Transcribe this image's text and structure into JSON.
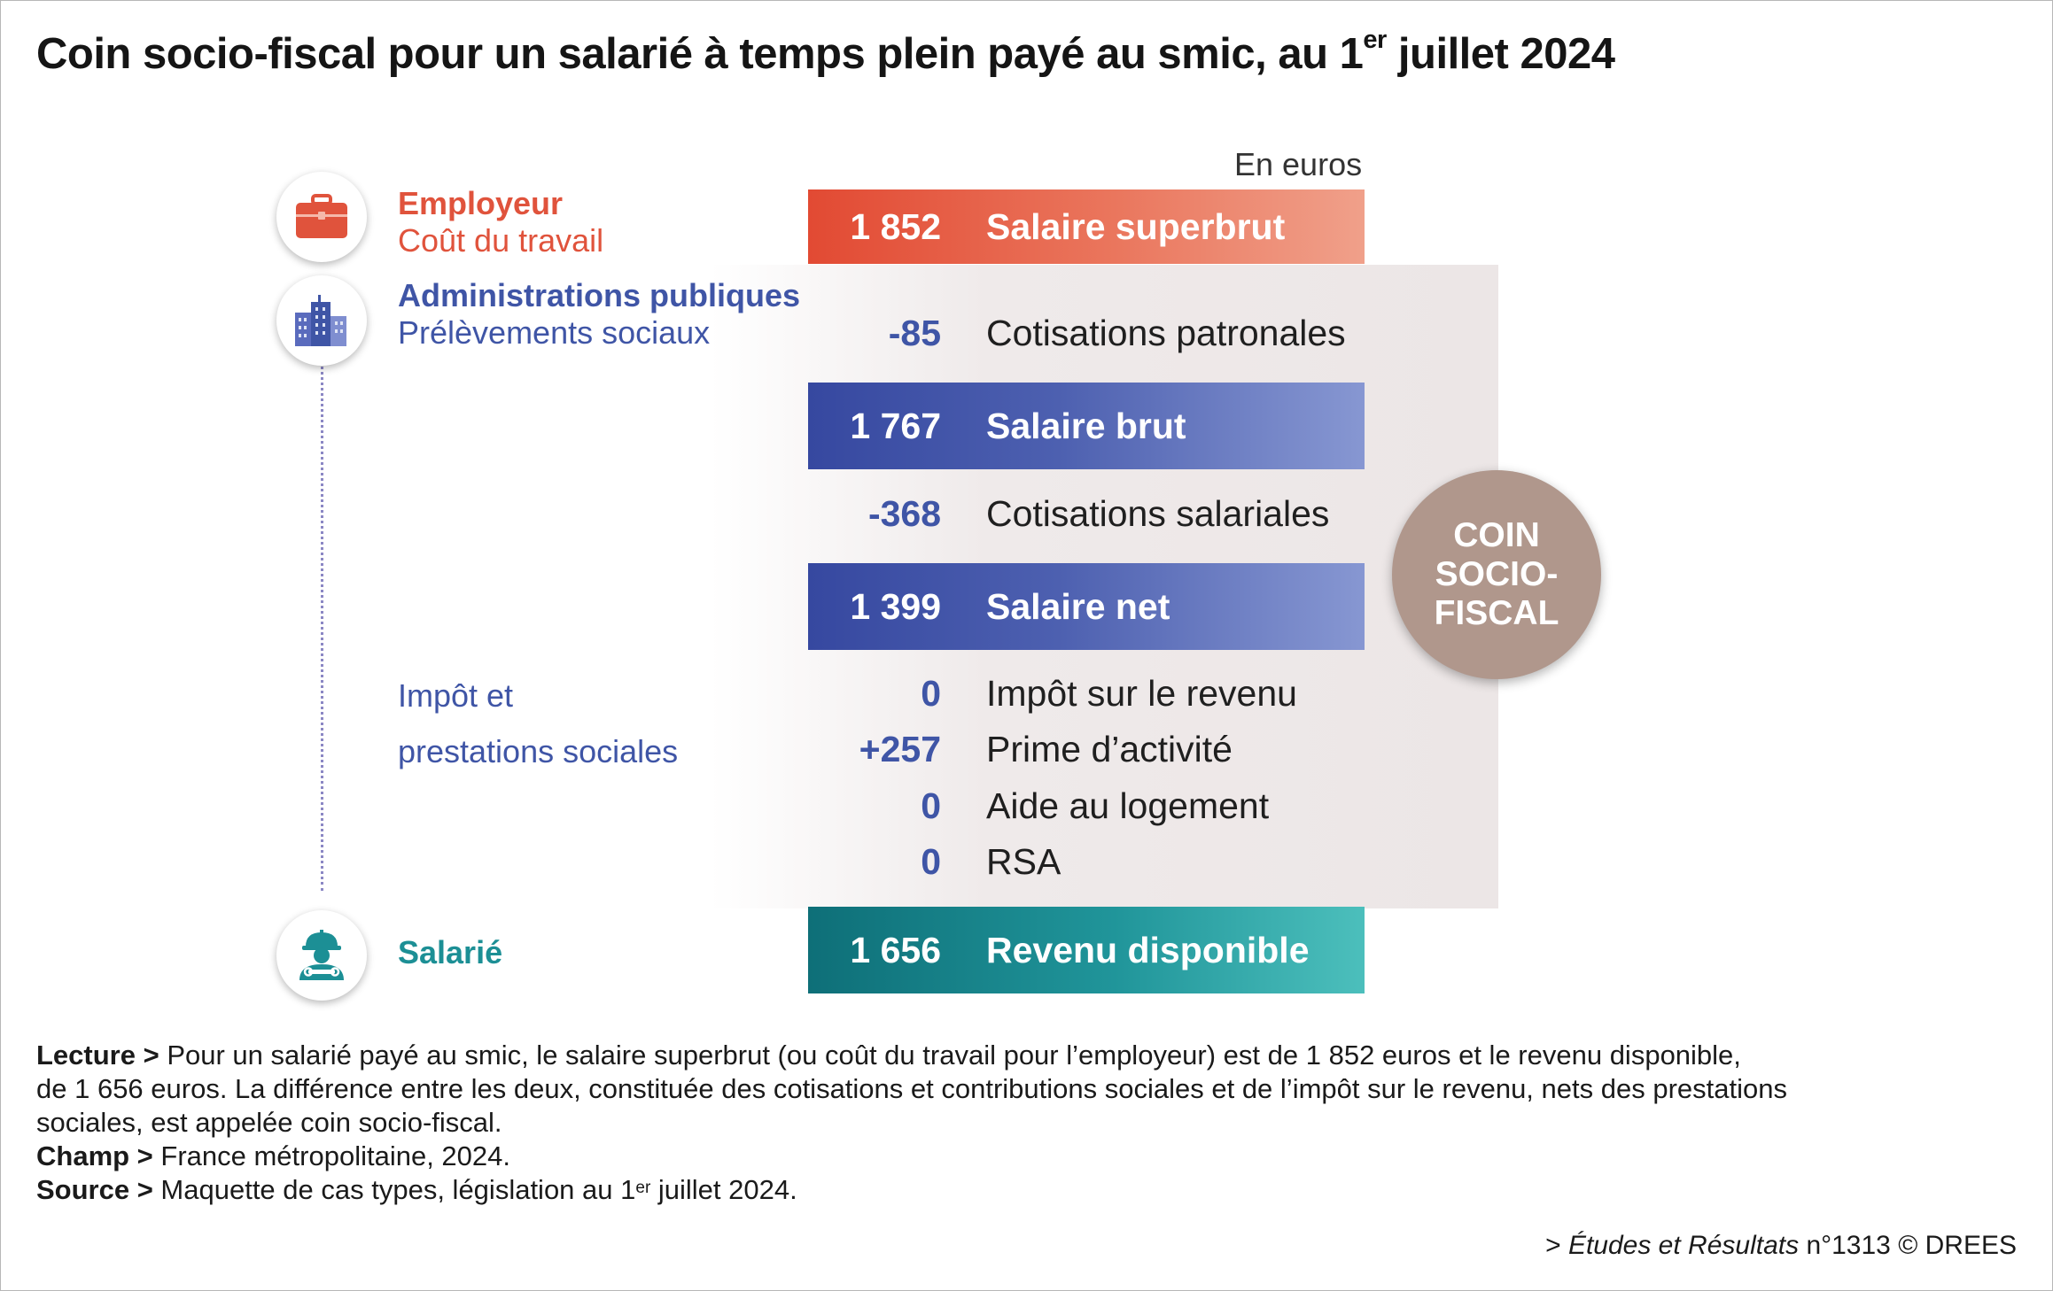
{
  "title": {
    "text": "Coin socio-fiscal pour un salarié à temps plein payé au smic, au 1",
    "sup": "er",
    "end": " juillet 2024"
  },
  "unit": "En euros",
  "actors": {
    "employeur": {
      "name": "Employeur",
      "sub": "Coût du travail",
      "icon": "briefcase-icon"
    },
    "admin": {
      "name": "Administrations publiques",
      "sub": "Prélèvements sociaux",
      "icon": "buildings-icon"
    },
    "impot": {
      "line1": "Impôt et",
      "line2": "prestations sociales"
    },
    "salarie": {
      "name": "Salarié",
      "icon": "worker-icon"
    }
  },
  "rows": {
    "superbrut": {
      "value": "1 852",
      "label": "Salaire superbrut"
    },
    "cot_patronales": {
      "value": "-85",
      "label": "Cotisations patronales"
    },
    "brut": {
      "value": "1 767",
      "label": "Salaire brut"
    },
    "cot_salariales": {
      "value": "-368",
      "label": "Cotisations salariales"
    },
    "net": {
      "value": "1 399",
      "label": "Salaire net"
    },
    "impot_revenu": {
      "value": "0",
      "label": "Impôt sur le revenu"
    },
    "prime_activite": {
      "value": "+257",
      "label": "Prime d’activité"
    },
    "aide_logement": {
      "value": "0",
      "label": "Aide au logement"
    },
    "rsa": {
      "value": "0",
      "label": "RSA"
    },
    "revenu_disponible": {
      "value": "1 656",
      "label": "Revenu disponible"
    }
  },
  "coin": {
    "text": "COIN\nSOCIO-\nFISCAL"
  },
  "notes": {
    "lecture_label": "Lecture >",
    "lecture_text": " Pour un salarié payé au smic, le salaire superbrut (ou coût du travail pour l’employeur) est de 1 852 euros et le revenu disponible,",
    "lecture_text2": "de 1 656 euros. La différence entre les deux, constituée des cotisations et contributions sociales et de l’impôt sur le revenu, nets des prestations",
    "lecture_text3": "sociales, est appelée coin socio-fiscal.",
    "champ_label": "Champ >",
    "champ_text": " France métropolitaine, 2024.",
    "source_label": "Source >",
    "source_text": " Maquette de cas types, législation au 1",
    "source_sup": "er",
    "source_end": " juillet 2024."
  },
  "credit": {
    "prefix": "> ",
    "pub": "Études et Résultats",
    "rest": " n°1313 © DREES"
  },
  "colors": {
    "employer": "#e0533c",
    "admin": "#3f55a6",
    "salarie": "#1c8f95",
    "coin": "#b0978c"
  }
}
